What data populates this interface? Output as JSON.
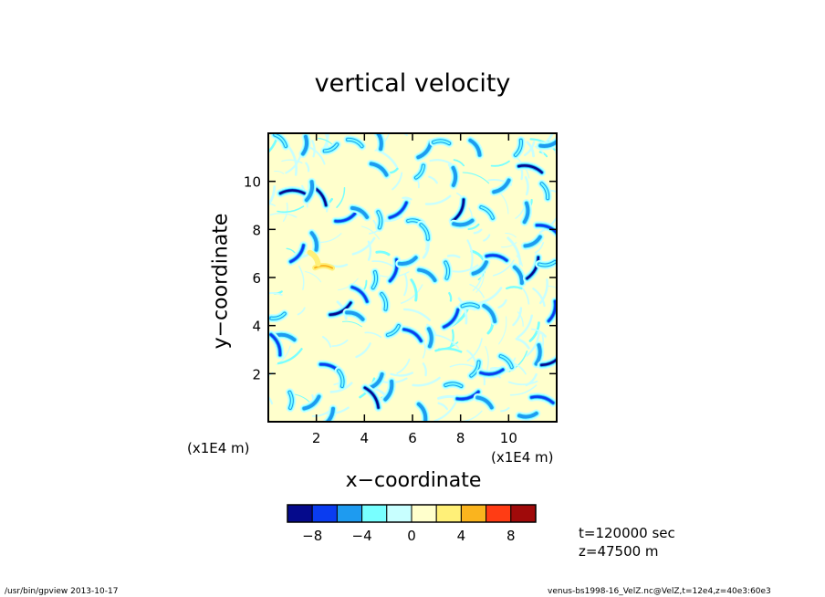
{
  "chart_data": {
    "type": "heatmap",
    "title": "vertical velocity",
    "xlabel": "x−coordinate",
    "ylabel": "y−coordinate",
    "x_multiplier": "(x1E4 m)",
    "y_multiplier": "(x1E4 m)",
    "xlim": [
      0,
      12
    ],
    "ylim": [
      0,
      12
    ],
    "x_ticks": [
      2,
      4,
      6,
      8,
      10
    ],
    "y_ticks": [
      2,
      4,
      6,
      8,
      10
    ],
    "x_tick_labels": [
      "2",
      "4",
      "6",
      "8",
      "10"
    ],
    "y_tick_labels": [
      "2",
      "4",
      "6",
      "8",
      "10"
    ],
    "background_value": 0,
    "features": [
      {
        "x": 1.0,
        "y": 9.5,
        "value": -9
      },
      {
        "x": 2.1,
        "y": 9.4,
        "value": -9
      },
      {
        "x": 1.7,
        "y": 9.6,
        "value": -6
      },
      {
        "x": 3.2,
        "y": 8.5,
        "value": -7
      },
      {
        "x": 3.8,
        "y": 8.7,
        "value": -5
      },
      {
        "x": 4.6,
        "y": 8.4,
        "value": -4
      },
      {
        "x": 5.4,
        "y": 8.8,
        "value": -8
      },
      {
        "x": 6.1,
        "y": 8.3,
        "value": -3
      },
      {
        "x": 6.5,
        "y": 7.9,
        "value": -4
      },
      {
        "x": 7.9,
        "y": 8.8,
        "value": -9
      },
      {
        "x": 8.1,
        "y": 8.3,
        "value": -6
      },
      {
        "x": 9.1,
        "y": 8.7,
        "value": -4
      },
      {
        "x": 10.7,
        "y": 8.7,
        "value": -6
      },
      {
        "x": 11.0,
        "y": 7.5,
        "value": -5
      },
      {
        "x": 11.6,
        "y": 8.0,
        "value": -8
      },
      {
        "x": 1.9,
        "y": 7.5,
        "value": -5
      },
      {
        "x": 1.2,
        "y": 7.0,
        "value": -7
      },
      {
        "x": 2.3,
        "y": 6.4,
        "value": 5
      },
      {
        "x": 1.9,
        "y": 6.8,
        "value": 3
      },
      {
        "x": 5.2,
        "y": 6.3,
        "value": -8
      },
      {
        "x": 5.8,
        "y": 6.7,
        "value": -5
      },
      {
        "x": 6.6,
        "y": 6.1,
        "value": -6
      },
      {
        "x": 7.4,
        "y": 6.3,
        "value": -4
      },
      {
        "x": 8.8,
        "y": 6.4,
        "value": -5
      },
      {
        "x": 9.5,
        "y": 6.8,
        "value": -7
      },
      {
        "x": 10.4,
        "y": 6.1,
        "value": -5
      },
      {
        "x": 11.0,
        "y": 6.4,
        "value": -9
      },
      {
        "x": 11.6,
        "y": 6.6,
        "value": -4
      },
      {
        "x": 3.8,
        "y": 5.3,
        "value": -7
      },
      {
        "x": 4.4,
        "y": 5.9,
        "value": -4
      },
      {
        "x": 3.0,
        "y": 4.7,
        "value": -9
      },
      {
        "x": 3.6,
        "y": 4.4,
        "value": -5
      },
      {
        "x": 4.8,
        "y": 5.0,
        "value": -4
      },
      {
        "x": 7.6,
        "y": 4.3,
        "value": -8
      },
      {
        "x": 8.4,
        "y": 4.8,
        "value": -4
      },
      {
        "x": 9.2,
        "y": 4.5,
        "value": -6
      },
      {
        "x": 11.8,
        "y": 4.6,
        "value": -7
      },
      {
        "x": 0.4,
        "y": 4.4,
        "value": -3
      },
      {
        "x": 6.0,
        "y": 3.6,
        "value": -7
      },
      {
        "x": 6.7,
        "y": 3.5,
        "value": -5
      },
      {
        "x": 5.2,
        "y": 3.8,
        "value": -3
      },
      {
        "x": 0.7,
        "y": 3.5,
        "value": -6
      },
      {
        "x": 0.3,
        "y": 3.2,
        "value": -8
      },
      {
        "x": 8.6,
        "y": 2.2,
        "value": -4
      },
      {
        "x": 9.3,
        "y": 2.1,
        "value": -8
      },
      {
        "x": 9.9,
        "y": 2.5,
        "value": -4
      },
      {
        "x": 11.2,
        "y": 2.8,
        "value": -6
      },
      {
        "x": 11.8,
        "y": 2.6,
        "value": -9
      },
      {
        "x": 2.6,
        "y": 2.2,
        "value": -8
      },
      {
        "x": 3.0,
        "y": 1.8,
        "value": -4
      },
      {
        "x": 4.5,
        "y": 1.7,
        "value": -5
      },
      {
        "x": 7.7,
        "y": 1.5,
        "value": -4
      },
      {
        "x": 4.3,
        "y": 1.0,
        "value": -9
      },
      {
        "x": 5.0,
        "y": 1.3,
        "value": -6
      },
      {
        "x": 8.3,
        "y": 1.1,
        "value": -8
      },
      {
        "x": 9.0,
        "y": 0.8,
        "value": -5
      },
      {
        "x": 0.9,
        "y": 0.9,
        "value": -4
      },
      {
        "x": 1.8,
        "y": 0.8,
        "value": -6
      },
      {
        "x": 11.4,
        "y": 0.9,
        "value": -8
      },
      {
        "x": 6.4,
        "y": 0.4,
        "value": -5
      },
      {
        "x": 2.5,
        "y": 0.2,
        "value": -6
      },
      {
        "x": 10.8,
        "y": 0.3,
        "value": -5
      },
      {
        "x": 0.5,
        "y": 11.7,
        "value": -4
      },
      {
        "x": 1.5,
        "y": 11.5,
        "value": -5
      },
      {
        "x": 2.6,
        "y": 11.4,
        "value": -3
      },
      {
        "x": 3.6,
        "y": 11.6,
        "value": -4
      },
      {
        "x": 4.6,
        "y": 11.7,
        "value": -5
      },
      {
        "x": 6.5,
        "y": 11.3,
        "value": -6
      },
      {
        "x": 7.2,
        "y": 11.6,
        "value": -4
      },
      {
        "x": 8.6,
        "y": 11.4,
        "value": -5
      },
      {
        "x": 10.4,
        "y": 11.4,
        "value": -4
      },
      {
        "x": 11.7,
        "y": 11.6,
        "value": -6
      },
      {
        "x": 4.6,
        "y": 10.5,
        "value": -6
      },
      {
        "x": 7.7,
        "y": 10.2,
        "value": -5
      },
      {
        "x": 9.7,
        "y": 9.8,
        "value": -6
      },
      {
        "x": 10.9,
        "y": 10.5,
        "value": -9
      },
      {
        "x": 11.5,
        "y": 9.6,
        "value": -4
      },
      {
        "x": 6.3,
        "y": 10.4,
        "value": -3
      }
    ],
    "colorbar": {
      "levels": [
        -10,
        -8,
        -6,
        -4,
        -2,
        0,
        2,
        4,
        6,
        8,
        10
      ],
      "colors": [
        "#050a8c",
        "#0a3cf0",
        "#1e9bf0",
        "#78ffff",
        "#c8ffff",
        "#ffffcc",
        "#fff078",
        "#fab41e",
        "#ff3c14",
        "#a00a0a"
      ],
      "tick_values": [
        -8,
        -4,
        0,
        4,
        8
      ],
      "tick_labels": [
        "−8",
        "−4",
        "0",
        "4",
        "8"
      ]
    }
  },
  "info": {
    "time": "t=120000 sec",
    "height": "z=47500 m"
  },
  "footer": {
    "left": "/usr/bin/gpview   2013-10-17",
    "right": "venus-bs1998-16_VelZ.nc@VelZ,t=12e4,z=40e3:60e3"
  }
}
